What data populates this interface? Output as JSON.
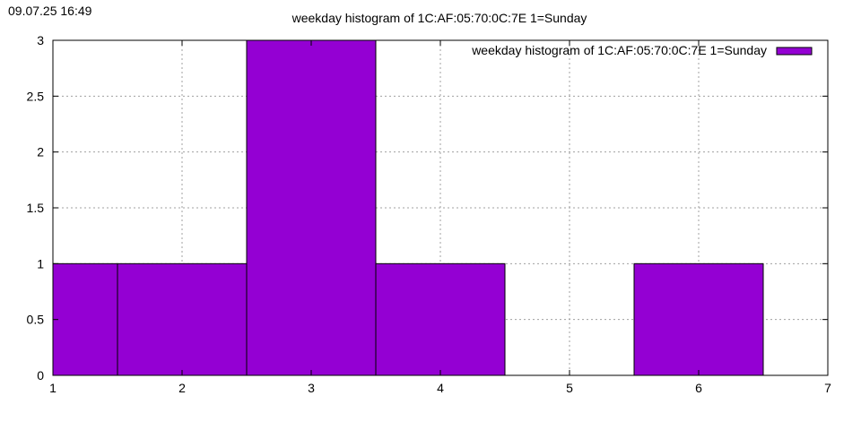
{
  "header": {
    "timestamp": "09.07.25 16:49"
  },
  "chart_data": {
    "type": "bar",
    "title": "weekday histogram of 1C:AF:05:70:0C:7E 1=Sunday",
    "xlabel": "",
    "ylabel": "",
    "xlim": [
      1,
      7
    ],
    "ylim": [
      0,
      3
    ],
    "x_ticks": [
      "1",
      "2",
      "3",
      "4",
      "5",
      "6",
      "7"
    ],
    "y_ticks": [
      "0",
      "0.5",
      "1",
      "1.5",
      "2",
      "2.5",
      "3"
    ],
    "bar_width": 1,
    "categories": [
      "1",
      "2",
      "3",
      "4",
      "5",
      "6"
    ],
    "series": [
      {
        "name": "weekday histogram of 1C:AF:05:70:0C:7E 1=Sunday",
        "color": "#9400d3",
        "x": [
          1,
          2,
          3,
          4,
          5,
          6
        ],
        "values": [
          1,
          1,
          3,
          1,
          0,
          1
        ]
      }
    ],
    "grid": true,
    "legend_position": "top-right"
  }
}
